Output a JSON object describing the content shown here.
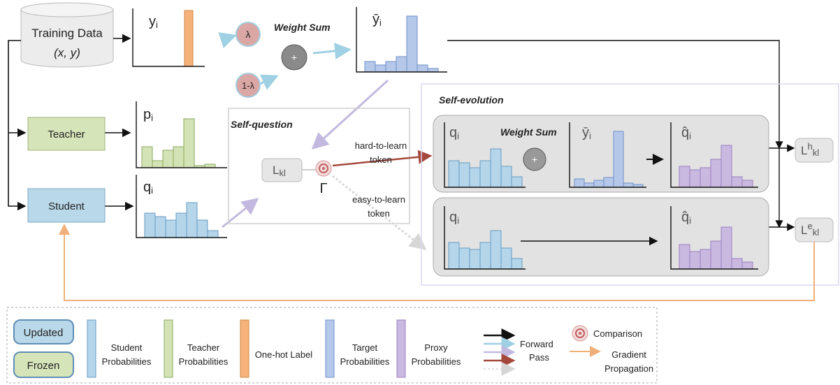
{
  "training_data": {
    "title": "Training Data",
    "pair": "(x,  y)"
  },
  "histograms": {
    "onehot": {
      "main": "y",
      "sub": "i"
    },
    "target": {
      "main": "ȳ",
      "sub": "i"
    },
    "teacher": {
      "main": "p",
      "sub": "i"
    },
    "student": {
      "main": "q",
      "sub": "i"
    }
  },
  "weighting": {
    "lambda": "λ",
    "one_minus_lambda": "1-λ",
    "label": "Weight Sum",
    "plus": "+"
  },
  "models": {
    "teacher": "Teacher",
    "student": "Student"
  },
  "self_question": {
    "title": "Self-question",
    "loss": {
      "main": "L",
      "sub": "kl"
    },
    "gamma": "Γ",
    "hard": [
      "hard-to-learn",
      "token"
    ],
    "easy": [
      "easy-to-learn",
      "token"
    ]
  },
  "self_evolution": {
    "title": "Self-evolution",
    "hard_path": {
      "student": {
        "main": "q",
        "sub": "i"
      },
      "label": "Weight Sum",
      "plus": "+",
      "target": {
        "main": "ȳ",
        "sub": "i"
      },
      "proxy": {
        "main": "q̂",
        "sub": "i"
      }
    },
    "easy_path": {
      "student": {
        "main": "q",
        "sub": "i"
      },
      "proxy": {
        "main": "q̂",
        "sub": "i"
      }
    },
    "loss_hard": {
      "main": "L",
      "sup": "h",
      "sub": "kl"
    },
    "loss_easy": {
      "main": "L",
      "sup": "e",
      "sub": "kl"
    }
  },
  "legend": {
    "updated": "Updated",
    "frozen": "Frozen",
    "items": [
      {
        "label": [
          "Student",
          "Probabilities"
        ]
      },
      {
        "label": [
          "Teacher",
          "Probabilities"
        ]
      },
      {
        "label": [
          "One-hot Label"
        ]
      },
      {
        "label": [
          "Target",
          "Probabilities"
        ]
      },
      {
        "label": [
          "Proxy",
          "Probabilities"
        ]
      }
    ],
    "forward": [
      "Forward",
      "Pass"
    ],
    "comparison": "Comparison",
    "gradient": [
      "Gradient",
      "Propagation"
    ]
  }
}
